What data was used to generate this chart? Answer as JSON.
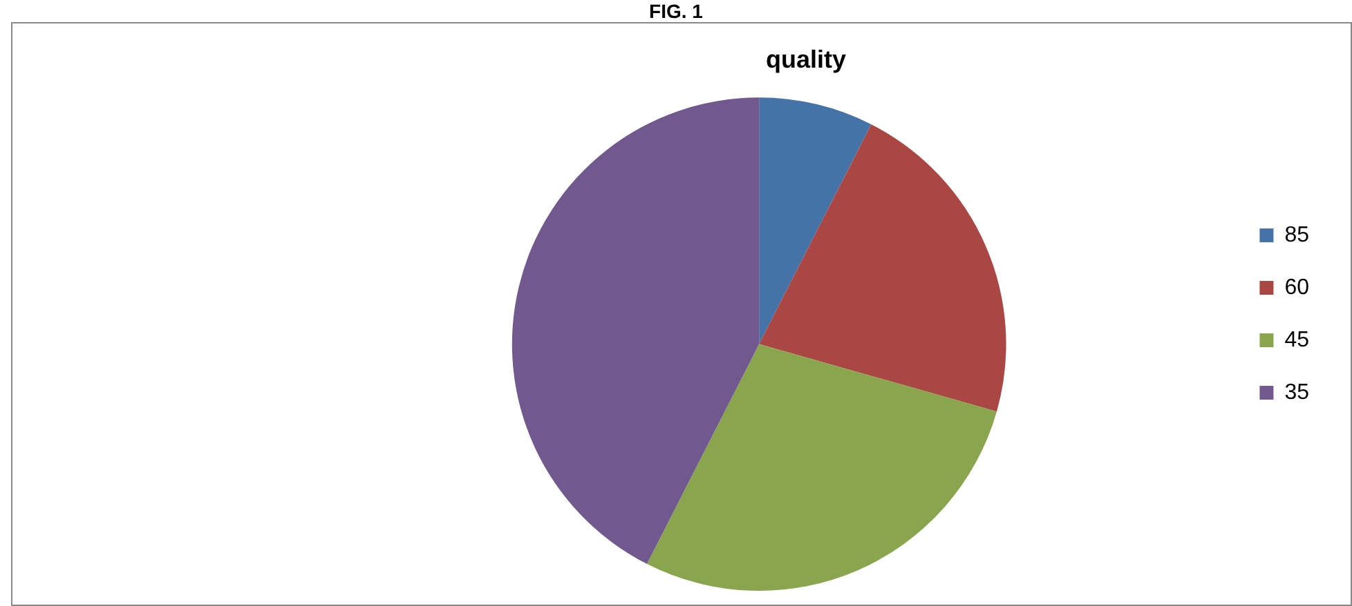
{
  "chart_data": {
    "type": "pie",
    "title": "quality",
    "annotations": [
      "FIG. 1"
    ],
    "categories": [
      "85",
      "60",
      "45",
      "35"
    ],
    "values": [
      7.5,
      21.9,
      28.1,
      42.5
    ],
    "colors": [
      "#4572a7",
      "#aa4643",
      "#89a54e",
      "#71588f"
    ],
    "legend": "right"
  }
}
